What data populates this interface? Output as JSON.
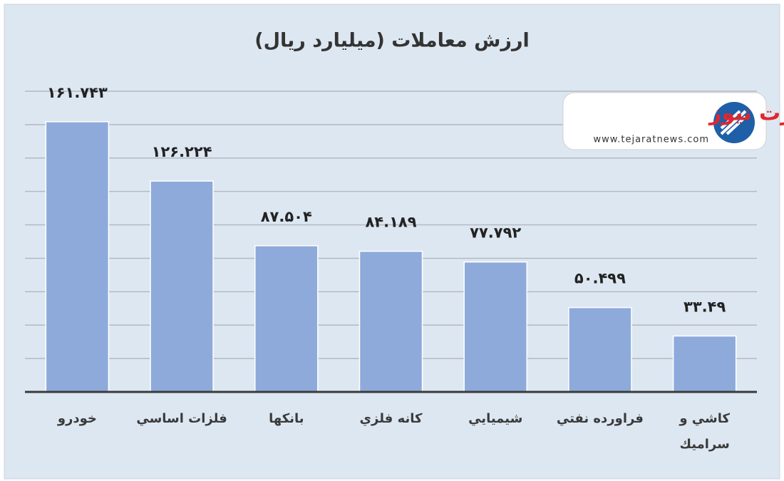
{
  "chart_data": {
    "type": "bar",
    "title": "ارزش معاملات  (میلیارد ریال)",
    "categories": [
      "خودرو",
      "فلزات اساسي",
      "بانكها",
      "كانه فلزي",
      "شيميايي",
      "فراورده نفتي",
      "كاشي و سراميك"
    ],
    "values": [
      161.743,
      126.224,
      87.504,
      84.189,
      77.792,
      50.499,
      33.49
    ],
    "value_labels": [
      "۱۶۱.۷۴۳",
      "۱۲۶.۲۲۴",
      "۸۷.۵۰۴",
      "۸۴.۱۸۹",
      "۷۷.۷۹۲",
      "۵۰.۴۹۹",
      "۳۳.۴۹"
    ],
    "color": "#8eaadb",
    "ylim": [
      0,
      180
    ],
    "yticks": [
      0,
      20,
      40,
      60,
      80,
      100,
      120,
      140,
      160,
      180
    ],
    "ytick_labels": false,
    "grid": true,
    "watermark": {
      "name": "تجارت نیوز",
      "url": "www.tejaratnews.com"
    }
  }
}
